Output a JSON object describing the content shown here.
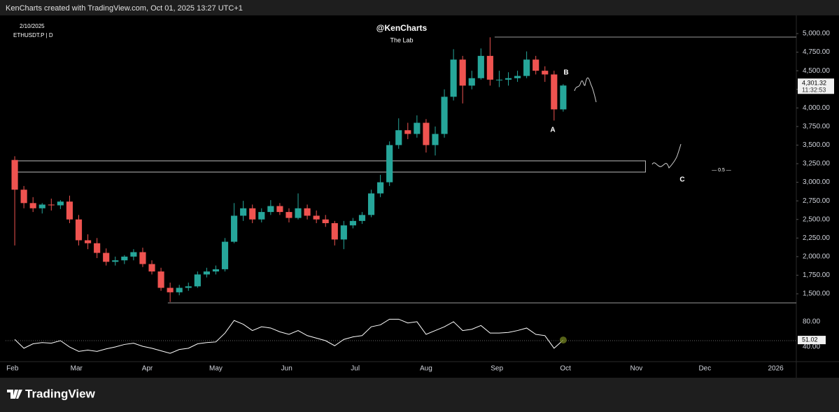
{
  "header": "KenCharts created with TradingView.com, Oct 01, 2025 13:27 UTC+1",
  "footer": "TradingView",
  "chart_data": {
    "type": "candlestick",
    "title": "@KenCharts",
    "subtitle": "The Lab",
    "date": "2/10/2025",
    "symbol": "ETHUSDT.P | D",
    "up_color": "#26a69a",
    "down_color": "#ef5350",
    "x": [
      33,
      37,
      41,
      45,
      49,
      53,
      57,
      61,
      65,
      69,
      73,
      77,
      81,
      85,
      89,
      93,
      97,
      101,
      105,
      109,
      113,
      117,
      121,
      125,
      129,
      133,
      137,
      141,
      145,
      149,
      153,
      157,
      161,
      165,
      169,
      173,
      177,
      181,
      185,
      189,
      193,
      197,
      201,
      205,
      209,
      213,
      217,
      221,
      225,
      229,
      233,
      237,
      241,
      245,
      249,
      253,
      257,
      261,
      265,
      269,
      273
    ],
    "open": [
      3300,
      2900,
      2720,
      2650,
      2700,
      2690,
      2740,
      2500,
      2220,
      2180,
      2050,
      1930,
      1950,
      2000,
      2060,
      1900,
      1800,
      1580,
      1520,
      1580,
      1600,
      1760,
      1800,
      1830,
      2200,
      2550,
      2650,
      2500,
      2600,
      2680,
      2600,
      2520,
      2650,
      2550,
      2500,
      2450,
      2230,
      2420,
      2480,
      2560,
      2850,
      3000,
      3500,
      3700,
      3650,
      3800,
      3500,
      3650,
      4150,
      4650,
      4300,
      4400,
      4700,
      4380,
      4380,
      4400,
      4430,
      4650,
      4500,
      4450,
      3980
    ],
    "high": [
      3350,
      2950,
      2800,
      2720,
      2780,
      2760,
      2820,
      2560,
      2300,
      2250,
      2110,
      2000,
      2020,
      2100,
      2120,
      1950,
      1850,
      1650,
      1620,
      1650,
      1800,
      1850,
      1880,
      2250,
      2720,
      2750,
      2700,
      2650,
      2760,
      2720,
      2650,
      2850,
      2700,
      2620,
      2560,
      2480,
      2480,
      2520,
      2600,
      2900,
      3100,
      3550,
      3860,
      3800,
      3900,
      3850,
      3750,
      4250,
      4790,
      4700,
      4500,
      4800,
      4950,
      4500,
      4480,
      4500,
      4760,
      4700,
      4560,
      4500,
      4320
    ],
    "low": [
      2150,
      2650,
      2600,
      2580,
      2620,
      2640,
      2450,
      2150,
      2100,
      1980,
      1880,
      1880,
      1900,
      1950,
      1860,
      1760,
      1540,
      1390,
      1480,
      1540,
      1580,
      1720,
      1760,
      1800,
      2180,
      2480,
      2450,
      2460,
      2560,
      2560,
      2460,
      2500,
      2500,
      2450,
      2400,
      2150,
      2100,
      2380,
      2440,
      2530,
      2800,
      2950,
      3450,
      3580,
      3600,
      3400,
      3360,
      3600,
      4100,
      4060,
      4250,
      4380,
      4300,
      4280,
      4300,
      4350,
      4400,
      4450,
      4350,
      3830,
      3950
    ],
    "close": [
      2900,
      2720,
      2650,
      2700,
      2690,
      2740,
      2500,
      2220,
      2180,
      2050,
      1930,
      1950,
      2000,
      2060,
      1900,
      1800,
      1580,
      1520,
      1580,
      1600,
      1760,
      1800,
      1830,
      2200,
      2550,
      2650,
      2500,
      2600,
      2680,
      2600,
      2520,
      2650,
      2550,
      2500,
      2450,
      2230,
      2420,
      2480,
      2560,
      2850,
      3000,
      3500,
      3700,
      3650,
      3800,
      3500,
      3650,
      4150,
      4650,
      4300,
      4400,
      4700,
      4380,
      4380,
      4400,
      4430,
      4650,
      4500,
      4450,
      3980,
      4301.32
    ],
    "price_tag": "4,301.32",
    "countdown": "11:32:53",
    "xlim": [
      29,
      375
    ],
    "xticks": [
      {
        "value": 32,
        "label": "Feb"
      },
      {
        "value": 60,
        "label": "Mar"
      },
      {
        "value": 91,
        "label": "Apr"
      },
      {
        "value": 121,
        "label": "May"
      },
      {
        "value": 152,
        "label": "Jun"
      },
      {
        "value": 182,
        "label": "Jul"
      },
      {
        "value": 213,
        "label": "Aug"
      },
      {
        "value": 244,
        "label": "Sep"
      },
      {
        "value": 274,
        "label": "Oct"
      },
      {
        "value": 305,
        "label": "Nov"
      },
      {
        "value": 335,
        "label": "Dec"
      },
      {
        "value": 366,
        "label": "2026"
      }
    ],
    "ylim": [
      1246,
      5094
    ],
    "yticks": [
      {
        "value": 1500,
        "label": "1,500.00"
      },
      {
        "value": 1750,
        "label": "1,750.00"
      },
      {
        "value": 2000,
        "label": "2,000.00"
      },
      {
        "value": 2250,
        "label": "2,250.00"
      },
      {
        "value": 2500,
        "label": "2,500.00"
      },
      {
        "value": 2750,
        "label": "2,750.00"
      },
      {
        "value": 3000,
        "label": "3,000.00"
      },
      {
        "value": 3250,
        "label": "3,250.00"
      },
      {
        "value": 3500,
        "label": "3,500.00"
      },
      {
        "value": 3750,
        "label": "3,750.00"
      },
      {
        "value": 4000,
        "label": "4,000.00"
      },
      {
        "value": 4250,
        "label": "4,250.00"
      },
      {
        "value": 4500,
        "label": "4,500.00"
      },
      {
        "value": 4750,
        "label": "4,750.00"
      },
      {
        "value": 5000,
        "label": "5,000.00"
      }
    ],
    "zone": {
      "x": [
        32,
        309
      ],
      "y": [
        3137,
        3288
      ]
    },
    "levels": [
      {
        "value": 4953,
        "from": 243
      },
      {
        "value": 1378,
        "from": 100
      }
    ],
    "rsi": {
      "values": [
        52,
        38,
        45,
        47,
        46,
        50,
        40,
        33,
        35,
        33,
        37,
        40,
        44,
        46,
        41,
        38,
        34,
        30,
        36,
        38,
        45,
        47,
        48,
        62,
        82,
        76,
        66,
        72,
        70,
        64,
        60,
        66,
        58,
        54,
        50,
        42,
        52,
        56,
        58,
        72,
        75,
        84,
        84,
        78,
        80,
        60,
        66,
        72,
        80,
        66,
        68,
        74,
        62,
        62,
        63,
        66,
        70,
        60,
        58,
        38,
        51.02
      ],
      "value_label": "51.02",
      "color": "#ffffff",
      "level": 50,
      "ylim": [
        19,
        91
      ],
      "yticks": [
        {
          "value": 80,
          "label": "80.00"
        },
        {
          "value": 40,
          "label": "40.00"
        }
      ]
    },
    "annotations": {
      "a": "A",
      "b": "B",
      "c": "C",
      "fib": "— 0.5 —"
    }
  }
}
